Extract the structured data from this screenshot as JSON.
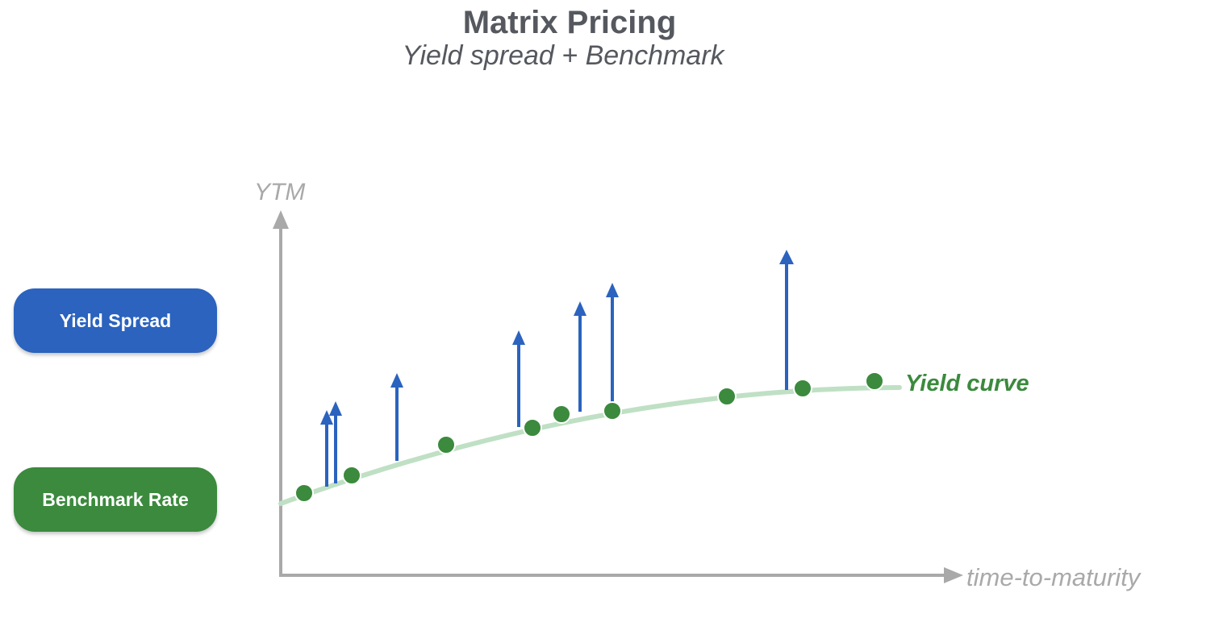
{
  "header": {
    "title": "Matrix Pricing",
    "subtitle": "Yield spread + Benchmark"
  },
  "legend": {
    "yield_spread": "Yield Spread",
    "benchmark_rate": "Benchmark Rate"
  },
  "axes": {
    "y_label": "YTM",
    "x_label": "time-to-maturity"
  },
  "curve": {
    "label": "Yield curve"
  },
  "colors": {
    "title": "#55585e",
    "axis": "#a9a9a9",
    "spread_blue": "#2b63be",
    "benchmark_green": "#3b8a3d",
    "curve_light_green": "#bfe0c4"
  }
}
